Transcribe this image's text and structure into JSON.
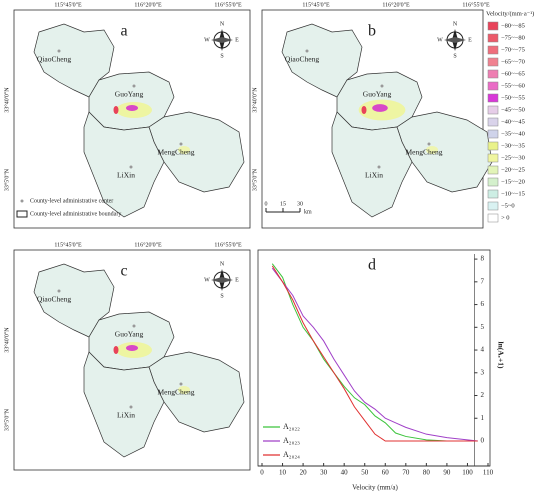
{
  "map_axes": {
    "lon": [
      "115°45'0\"E",
      "116°20'0\"E",
      "116°55'0\"E"
    ],
    "lat": [
      "33°40'0\"N",
      "33°5'0\"N"
    ]
  },
  "counties": [
    "QiaoCheng",
    "GuoYang",
    "MengCheng",
    "LiXin"
  ],
  "compass": [
    "N",
    "S",
    "W",
    "E"
  ],
  "panels": [
    {
      "letter": "a"
    },
    {
      "letter": "b"
    },
    {
      "letter": "c"
    }
  ],
  "map_legend": {
    "center": "County-level administrative center",
    "boundary": "County-level administrative boundary"
  },
  "scale_bar": {
    "labels": [
      "0",
      "15",
      "30"
    ],
    "unit": "km"
  },
  "legend": {
    "title": "Velocity/(mm·a⁻¹)",
    "classes": [
      "−80~−85",
      "−75~−80",
      "−70~−75",
      "−65~−70",
      "−60~−65",
      "−55~−60",
      "−50~−55",
      "−45~−50",
      "−40~−45",
      "−35~−40",
      "−30~−35",
      "−25~−30",
      "−20~−25",
      "−15~−20",
      "−10~−15",
      "−5~0",
      "> 0"
    ],
    "colors": [
      "#e8435a",
      "#ec5a6a",
      "#ef6e7c",
      "#f08290",
      "#ee7fb2",
      "#ea6cc6",
      "#d838d8",
      "#e6cde8",
      "#d9d3ea",
      "#cfd3ea",
      "#e9f28a",
      "#f0f5a0",
      "#e2f4b8",
      "#d4f0cc",
      "#cdeee4",
      "#d9f2f2",
      "#ffffff"
    ]
  },
  "chart_data": {
    "type": "line",
    "letter": "d",
    "xlabel": "Velocity (mm/a)",
    "ylabel": "ln(Aᵥ+1)",
    "x": [
      5,
      10,
      15,
      20,
      25,
      30,
      35,
      40,
      45,
      50,
      55,
      60,
      65,
      70,
      80,
      90,
      100,
      105
    ],
    "xlim": [
      0,
      110
    ],
    "xticks": [
      0,
      10,
      20,
      30,
      40,
      50,
      60,
      70,
      80,
      90,
      100,
      110
    ],
    "ylim": [
      -1.1,
      8.4
    ],
    "yticks": [
      0,
      1,
      2,
      3,
      4,
      5,
      6,
      7,
      8
    ],
    "series": [
      {
        "name": "A₂₀₂₂",
        "color": "#3cc43c",
        "values": [
          7.8,
          7.2,
          6.0,
          5.0,
          4.4,
          3.6,
          3.0,
          2.4,
          1.9,
          1.6,
          1.1,
          0.8,
          0.35,
          0.2,
          0.05,
          0,
          0,
          0
        ]
      },
      {
        "name": "A₂₀₂₃",
        "color": "#a040c8",
        "values": [
          7.6,
          7.0,
          6.4,
          5.5,
          5.0,
          4.4,
          3.6,
          2.9,
          2.2,
          1.7,
          1.4,
          1.0,
          0.8,
          0.6,
          0.3,
          0.15,
          0.05,
          0
        ]
      },
      {
        "name": "A₂₀₂₄",
        "color": "#e03030",
        "values": [
          7.7,
          7.0,
          6.2,
          5.2,
          4.4,
          3.7,
          3.0,
          2.3,
          1.5,
          0.9,
          0.3,
          0,
          0,
          0,
          0,
          0,
          0,
          0
        ]
      }
    ]
  }
}
